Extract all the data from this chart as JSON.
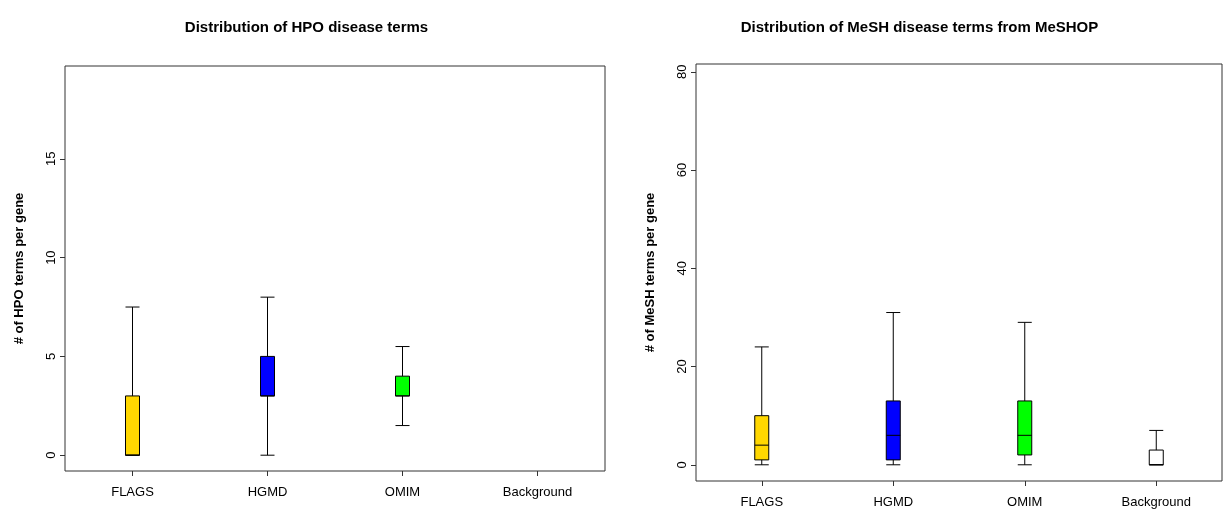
{
  "chart_data": [
    {
      "type": "box",
      "title": "Distribution of HPO disease terms",
      "ylabel": "# of HPO terms per gene",
      "categories": [
        "FLAGS",
        "HGMD",
        "OMIM",
        "Background"
      ],
      "colors": [
        "#ffd700",
        "#0000ff",
        "#00ff00",
        "#ffffff"
      ],
      "boxes": [
        {
          "low": 0,
          "q1": 0,
          "median": 0,
          "q3": 3,
          "high": 7.5
        },
        {
          "low": 0,
          "q1": 3,
          "median": 3,
          "q3": 5,
          "high": 8
        },
        {
          "low": 1.5,
          "q1": 3,
          "median": 3,
          "q3": 4,
          "high": 5.5
        },
        {
          "low": 0,
          "q1": 0,
          "median": 0,
          "q3": 0,
          "high": 0
        }
      ],
      "ylim": [
        -0.8,
        19.7
      ],
      "yticks": [
        0,
        5,
        10,
        15
      ],
      "grid": false
    },
    {
      "type": "box",
      "title": "Distribution of MeSH disease terms from MeSHOP",
      "ylabel": "# of MeSH terms per gene",
      "categories": [
        "FLAGS",
        "HGMD",
        "OMIM",
        "Background"
      ],
      "colors": [
        "#ffd700",
        "#0000ff",
        "#00ff00",
        "#ffffff"
      ],
      "boxes": [
        {
          "low": 0,
          "q1": 1,
          "median": 4,
          "q3": 10,
          "high": 24
        },
        {
          "low": 0,
          "q1": 1,
          "median": 6,
          "q3": 13,
          "high": 31
        },
        {
          "low": 0,
          "q1": 2,
          "median": 6,
          "q3": 13,
          "high": 29
        },
        {
          "low": 0,
          "q1": 0,
          "median": 0,
          "q3": 3,
          "high": 7
        }
      ],
      "ylim": [
        -3.3,
        81.6
      ],
      "yticks": [
        0,
        20,
        40,
        60,
        80
      ],
      "grid": false
    }
  ]
}
